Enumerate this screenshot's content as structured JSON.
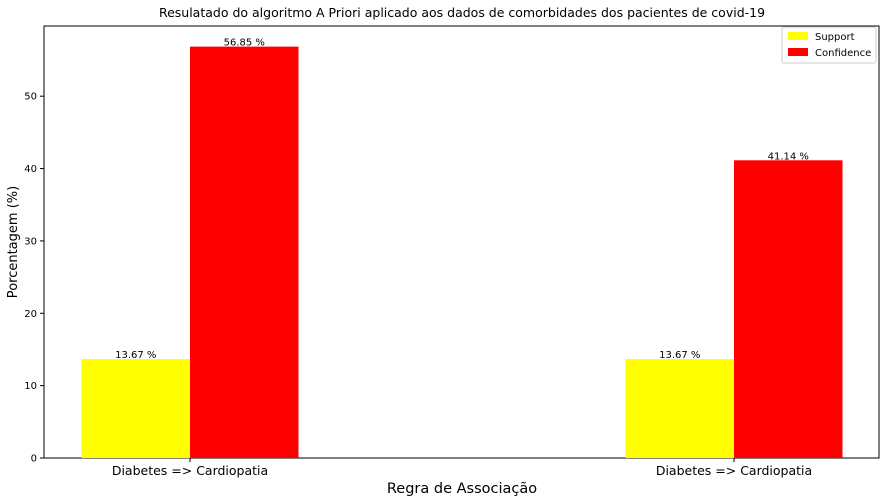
{
  "chart_data": {
    "type": "bar",
    "title": "Resulatado do algoritmo A Priori aplicado aos dados de comorbidades dos pacientes de covid-19",
    "xlabel": "Regra de Associação",
    "ylabel": "Porcentagem (%)",
    "categories": [
      "Diabetes => Cardiopatia",
      "Diabetes => Cardiopatia"
    ],
    "series": [
      {
        "name": "Support",
        "values": [
          13.67,
          13.67
        ],
        "labels": [
          "13.67 %",
          "13.67 %"
        ],
        "color": "#ffff00"
      },
      {
        "name": "Confidence",
        "values": [
          56.85,
          41.14
        ],
        "labels": [
          "56.85 %",
          "41.14 %"
        ],
        "color": "#ff0000"
      }
    ],
    "ylim": [
      0,
      59.7
    ],
    "yticks": [
      0,
      10,
      20,
      30,
      40,
      50
    ],
    "ytick_labels": [
      "0",
      "10",
      "20",
      "30",
      "40",
      "50"
    ],
    "grid": false,
    "legend_position": "top-right"
  }
}
